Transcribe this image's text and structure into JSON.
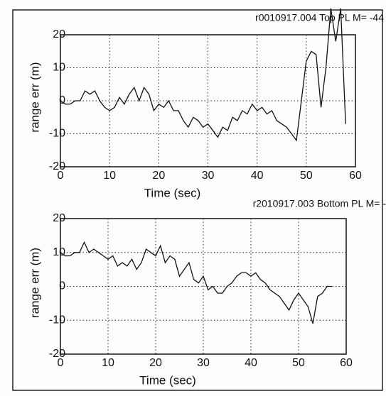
{
  "chart_data": [
    {
      "type": "line",
      "title": "r0010917.004 Top PL M= -44",
      "x_label": "Time (sec)",
      "y_label": "range err (m)",
      "x": [
        0,
        1,
        2,
        3,
        4,
        5,
        6,
        7,
        8,
        9,
        10,
        11,
        12,
        13,
        14,
        15,
        16,
        17,
        18,
        19,
        20,
        21,
        22,
        23,
        24,
        25,
        26,
        27,
        28,
        29,
        30,
        31,
        32,
        33,
        34,
        35,
        36,
        37,
        38,
        39,
        40,
        41,
        42,
        43,
        44,
        45,
        46,
        47,
        48,
        49,
        50,
        51,
        52,
        53,
        54,
        55,
        56,
        57,
        58
      ],
      "values": [
        0,
        -1,
        -1,
        0,
        0,
        3,
        2,
        3,
        0,
        -2,
        -3,
        -2,
        1,
        -1,
        2,
        4,
        0,
        4,
        2,
        -3,
        -1,
        -2,
        0,
        -3,
        -3,
        -6,
        -8,
        -5,
        -6,
        -8,
        -7,
        -9,
        -11,
        -8,
        -9,
        -5,
        -6,
        -3,
        -4,
        -1,
        -3,
        -2,
        -4,
        -3,
        -6,
        -7,
        -8,
        -10,
        -12,
        0,
        12,
        15,
        14,
        -2,
        10,
        28,
        18,
        28,
        -7
      ],
      "color": "#111111",
      "xlim": [
        0,
        60
      ],
      "ylim": [
        -20,
        20
      ],
      "xticks": [
        0,
        10,
        20,
        30,
        40,
        50,
        60
      ],
      "yticks": [
        -20,
        -10,
        0,
        10,
        20
      ],
      "grid": true
    },
    {
      "type": "line",
      "title": "r2010917.003 Bottom PL M= -",
      "x_label": "Time (sec)",
      "y_label": "range err (m)",
      "x": [
        0,
        1,
        2,
        3,
        4,
        5,
        6,
        7,
        8,
        9,
        10,
        11,
        12,
        13,
        14,
        15,
        16,
        17,
        18,
        19,
        20,
        21,
        22,
        23,
        24,
        25,
        26,
        27,
        28,
        29,
        30,
        31,
        32,
        33,
        34,
        35,
        36,
        37,
        38,
        39,
        40,
        41,
        42,
        43,
        44,
        45,
        46,
        47,
        48,
        49,
        50,
        51,
        52,
        53,
        54,
        55,
        56,
        57
      ],
      "values": [
        10,
        9,
        9,
        10,
        10,
        13,
        10,
        11,
        10,
        9,
        8,
        9,
        6,
        7,
        6,
        8,
        5,
        7,
        11,
        10,
        9,
        12,
        7,
        9,
        8,
        3,
        5,
        7,
        2,
        1,
        3,
        -1,
        0,
        -2,
        -2,
        0,
        1,
        3,
        4,
        4,
        3,
        4,
        2,
        1,
        -1,
        -2,
        -3,
        -5,
        -7,
        -4,
        -2,
        -4,
        -6,
        -11,
        -3,
        -2,
        0,
        0
      ],
      "color": "#111111",
      "xlim": [
        0,
        60
      ],
      "ylim": [
        -20,
        20
      ],
      "xticks": [
        0,
        10,
        20,
        30,
        40,
        50,
        60
      ],
      "yticks": [
        -20,
        -10,
        0,
        10,
        20
      ],
      "grid": true
    }
  ]
}
